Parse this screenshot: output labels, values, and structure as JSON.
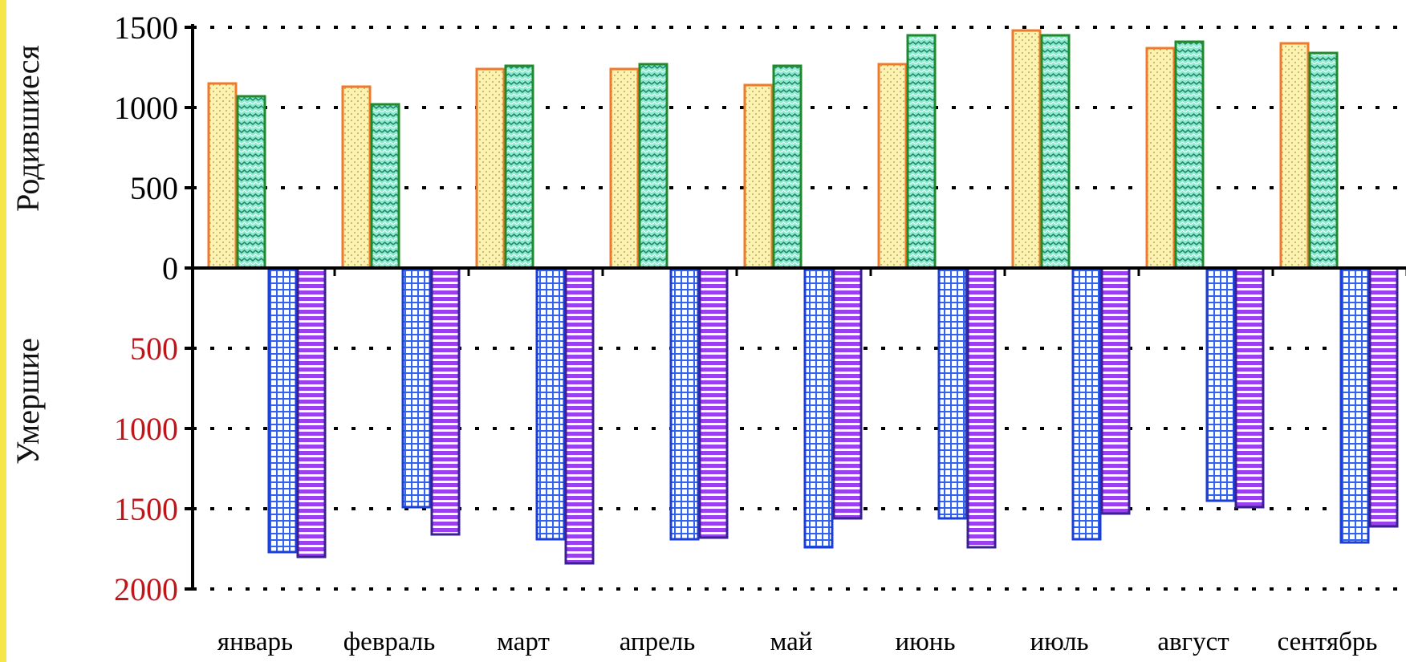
{
  "chart_data": {
    "type": "bar",
    "categories": [
      "январь",
      "февраль",
      "март",
      "апрель",
      "май",
      "июнь",
      "июль",
      "август",
      "сентябрь"
    ],
    "ylabel_top": "Родившиеся",
    "ylabel_bottom": "Умершие",
    "ylim_top": [
      0,
      1500
    ],
    "ylim_bottom": [
      0,
      2000
    ],
    "yticks_top": [
      "0",
      "500",
      "1000",
      "1500"
    ],
    "yticks_bottom": [
      "500",
      "1000",
      "1500",
      "2000"
    ],
    "grid": "dotted",
    "legend": "none",
    "series_top": [
      {
        "values": [
          1150,
          1130,
          1240,
          1240,
          1140,
          1270,
          1480,
          1370,
          1400
        ],
        "color": "#f07a2a",
        "fill": "#fbf2b4"
      },
      {
        "values": [
          1070,
          1020,
          1260,
          1270,
          1260,
          1450,
          1450,
          1410,
          1340
        ],
        "color": "#1f8a2c",
        "fill": "#8fe9cf"
      }
    ],
    "series_bottom": [
      {
        "values": [
          1770,
          1490,
          1690,
          1690,
          1740,
          1560,
          1690,
          1450,
          1710
        ],
        "color": "#1a3ed6",
        "fill": "#a9c6ff"
      },
      {
        "values": [
          1800,
          1660,
          1840,
          1680,
          1560,
          1740,
          1530,
          1490,
          1610
        ],
        "color": "#3a2090",
        "fill": "#9b55f2"
      }
    ]
  }
}
